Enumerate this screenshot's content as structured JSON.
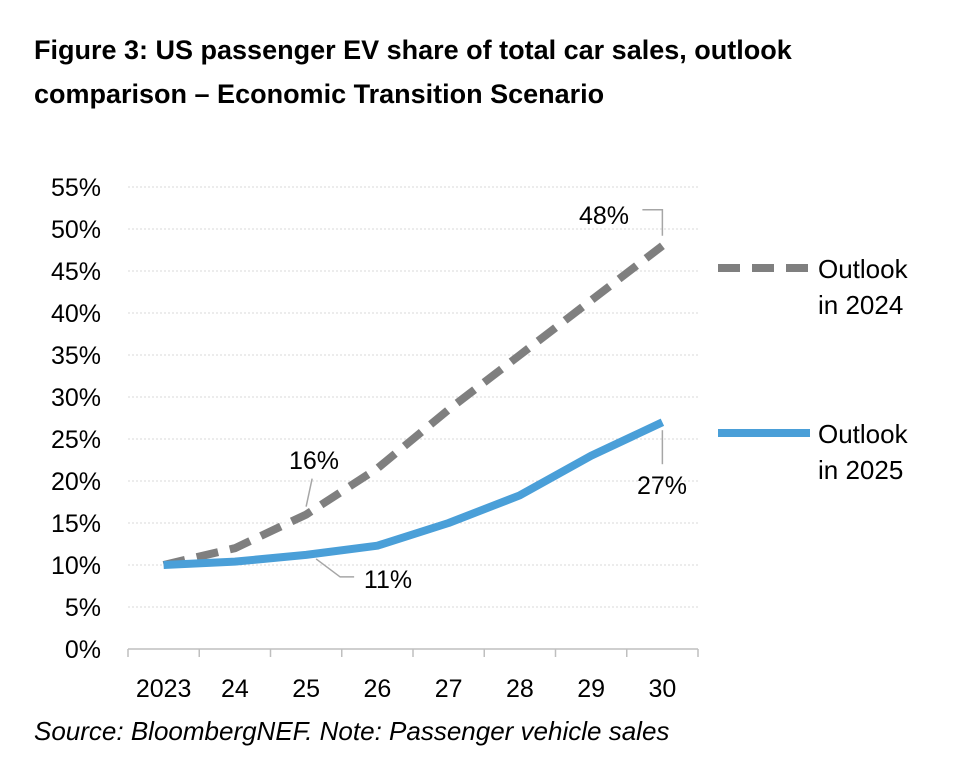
{
  "title_line1": "Figure 3:  US passenger EV share of total car sales, outlook",
  "title_line2": "comparison – Economic Transition Scenario",
  "source": "Source: BloombergNEF. Note: Passenger vehicle sales",
  "chart_data": {
    "type": "line",
    "categories": [
      "2023",
      "24",
      "25",
      "26",
      "27",
      "28",
      "29",
      "30"
    ],
    "series": [
      {
        "name": "Outlook in 2024",
        "legend_lines": [
          "Outlook",
          "in 2024"
        ],
        "values": [
          10,
          12,
          16,
          21.5,
          28.5,
          35,
          41.5,
          48
        ],
        "color": "#7f7f7f",
        "style": "dashed"
      },
      {
        "name": "Outlook in 2025",
        "legend_lines": [
          "Outlook",
          "in 2025"
        ],
        "values": [
          10,
          10.4,
          11.2,
          12.3,
          15,
          18.3,
          23,
          27
        ],
        "color": "#4a9fd8",
        "style": "solid"
      }
    ],
    "y_ticks": [
      "0%",
      "5%",
      "10%",
      "15%",
      "20%",
      "25%",
      "30%",
      "35%",
      "40%",
      "45%",
      "50%",
      "55%"
    ],
    "ylim": [
      0,
      55
    ],
    "grid": true,
    "legend_position": "right",
    "annotations": [
      {
        "text": "48%",
        "series": 0,
        "index": 7
      },
      {
        "text": "16%",
        "series": 0,
        "index": 2
      },
      {
        "text": "11%",
        "series": 1,
        "index": 2
      },
      {
        "text": "27%",
        "series": 1,
        "index": 7
      }
    ]
  }
}
